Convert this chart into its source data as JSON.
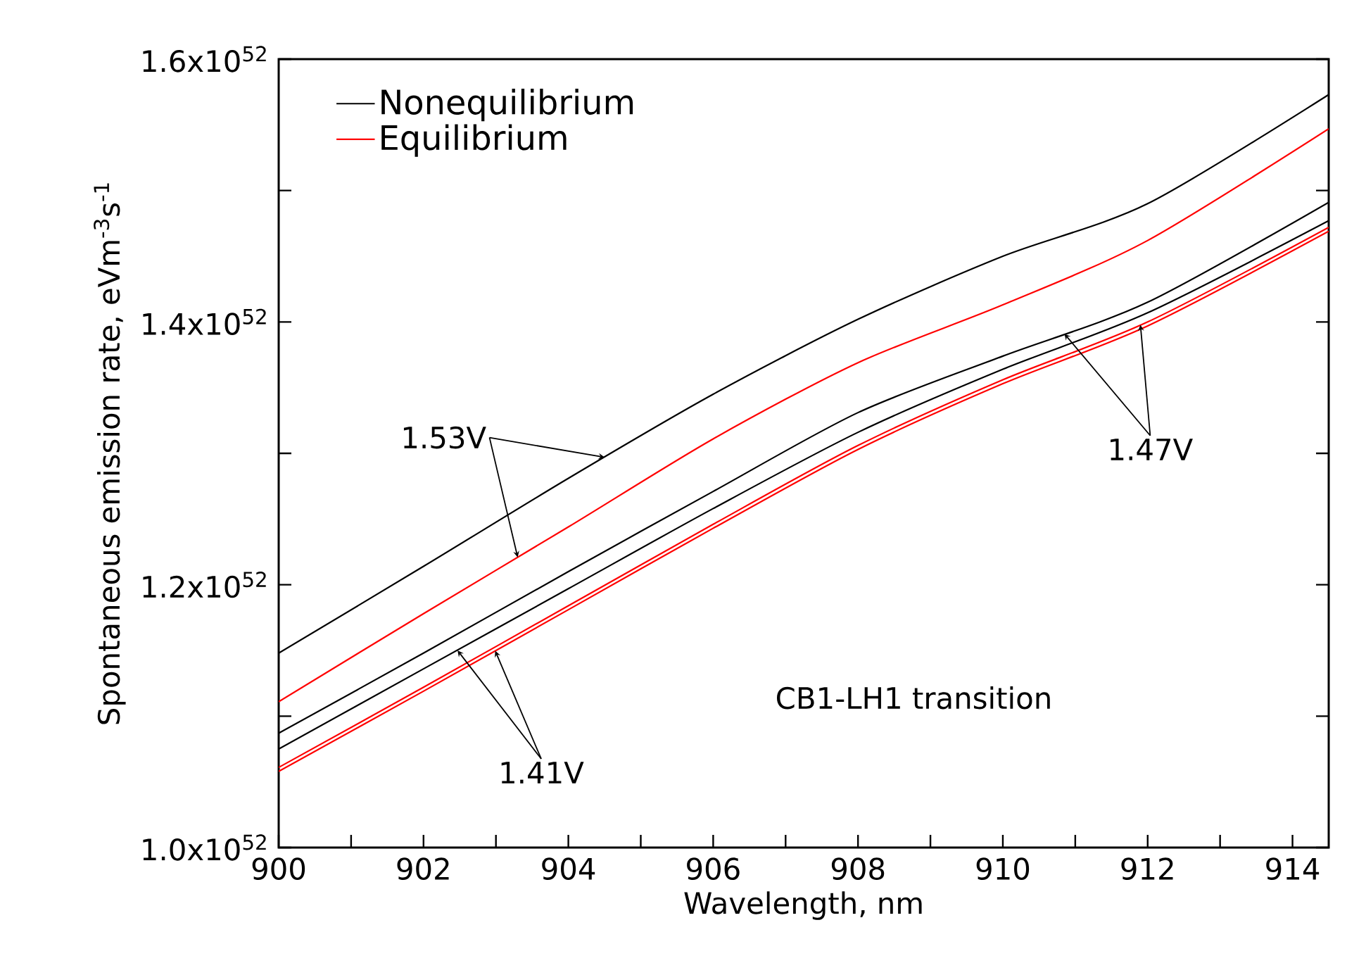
{
  "chart_data": {
    "type": "line",
    "xlabel": "Wavelength, nm",
    "ylabel": "Spontaneous emission rate, eVm$^{-3}$s$^{-1}$",
    "x": [
      900,
      902,
      904,
      906,
      908,
      910,
      912,
      914.5
    ],
    "series": [
      {
        "name": "Nonequilibrium",
        "color": "#000000",
        "values": [
          1.148e+52,
          1.214e+52,
          1.281e+52,
          1.345e+52,
          1.402e+52,
          1.45e+52,
          1.49e+52,
          1.573e+52
        ]
      },
      {
        "name": "Equilibrium",
        "color": "#ff0000",
        "values": [
          1.111e+52,
          1.178e+52,
          1.244e+52,
          1.311e+52,
          1.369e+52,
          1.413e+52,
          1.462e+52,
          1.547e+52
        ]
      },
      {
        "color": "#000000",
        "values": [
          1.087e+52,
          1.148e+52,
          1.21e+52,
          1.271e+52,
          1.331e+52,
          1.374e+52,
          1.415e+52,
          1.491e+52
        ]
      },
      {
        "color": "#000000",
        "values": [
          1.075e+52,
          1.136e+52,
          1.197e+52,
          1.258e+52,
          1.316e+52,
          1.364e+52,
          1.407e+52,
          1.477e+52
        ]
      },
      {
        "color": "#ff0000",
        "values": [
          1.061e+52,
          1.122e+52,
          1.184e+52,
          1.246e+52,
          1.306e+52,
          1.356e+52,
          1.4e+52,
          1.472e+52
        ]
      },
      {
        "color": "#ff0000",
        "values": [
          1.058e+52,
          1.119e+52,
          1.181e+52,
          1.243e+52,
          1.303e+52,
          1.353e+52,
          1.397e+52,
          1.469e+52
        ]
      }
    ],
    "xlim": [
      900,
      914.5
    ],
    "xticks": [
      900,
      {
        "value": 901,
        "label": null
      },
      902,
      {
        "value": 903,
        "label": null
      },
      904,
      {
        "value": 905,
        "label": null
      },
      906,
      {
        "value": 907,
        "label": null
      },
      908,
      {
        "value": 909,
        "label": null
      },
      910,
      {
        "value": 911,
        "label": null
      },
      912,
      {
        "value": 913,
        "label": null
      },
      914
    ],
    "ylim": [
      1e+52,
      1.6e+52
    ],
    "yticks": [
      {
        "value": 1e+52,
        "label": "1.0x10$^{52}$"
      },
      {
        "value": 1.1e+52,
        "label": null
      },
      {
        "value": 1.2e+52,
        "label": "1.2x10$^{52}$"
      },
      {
        "value": 1.3e+52,
        "label": null
      },
      {
        "value": 1.4e+52,
        "label": "1.4x10$^{52}$"
      },
      {
        "value": 1.5e+52,
        "label": null
      },
      {
        "value": 1.6e+52,
        "label": "1.6x10$^{52}$"
      }
    ],
    "annotations": [
      {
        "text": "1.53V",
        "x": 904.5,
        "y": 1.297e+52
      },
      {
        "text": "1.41V",
        "x": 902.47,
        "y": 1.15e+52
      },
      {
        "text": "1.47V",
        "x": 910.85,
        "y": 1.391e+52
      },
      "CB1-LH1 transition"
    ],
    "legend": "top left",
    "grid": false,
    "marker": "none",
    "line_style": "solid"
  }
}
